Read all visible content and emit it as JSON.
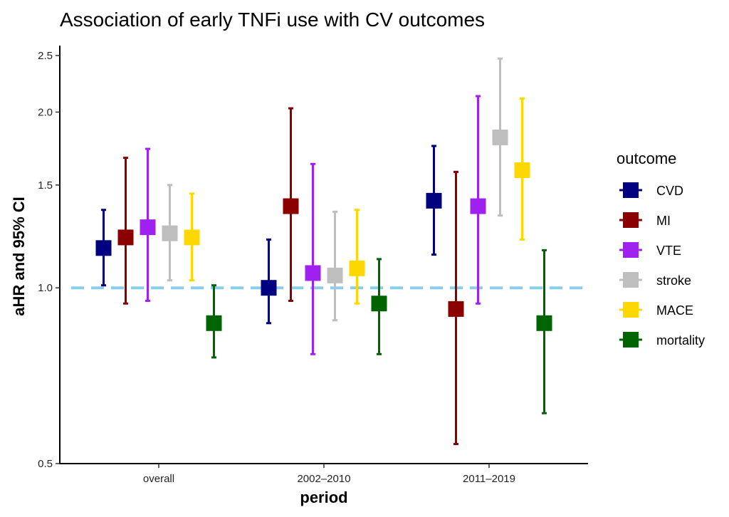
{
  "chart_data": {
    "type": "scatter",
    "subtype": "point-range (forest plot, dodged)",
    "title": "Association of early TNFi use with CV outcomes",
    "xlabel": "period",
    "ylabel": "aHR and 95% CI",
    "y_scale": "log",
    "ylim": [
      0.5,
      2.6
    ],
    "yticks": [
      0.5,
      1.0,
      1.5,
      2.0,
      2.5
    ],
    "ytick_labels": [
      "0.5",
      "1.0",
      "1.5",
      "2.0",
      "2.5"
    ],
    "categories": [
      "overall",
      "2002–2010",
      "2011–2019"
    ],
    "reference_line": {
      "y": 1.0,
      "style": "dashed",
      "color": "#87ceeb"
    },
    "grid": false,
    "legend": {
      "title": "outcome",
      "position": "right"
    },
    "series": [
      {
        "name": "CVD",
        "color": "#000080",
        "values": [
          1.17,
          1.0,
          1.41
        ],
        "lower": [
          1.01,
          0.87,
          1.14
        ],
        "upper": [
          1.36,
          1.21,
          1.75
        ]
      },
      {
        "name": "MI",
        "color": "#8b0000",
        "values": [
          1.22,
          1.38,
          0.92
        ],
        "lower": [
          0.94,
          0.95,
          0.54
        ],
        "upper": [
          1.67,
          2.03,
          1.58
        ]
      },
      {
        "name": "VTE",
        "color": "#a020f0",
        "values": [
          1.27,
          1.06,
          1.38
        ],
        "lower": [
          0.95,
          0.77,
          0.94
        ],
        "upper": [
          1.73,
          1.63,
          2.13
        ]
      },
      {
        "name": "stroke",
        "color": "#bebebe",
        "values": [
          1.24,
          1.05,
          1.81
        ],
        "lower": [
          1.03,
          0.88,
          1.33
        ],
        "upper": [
          1.5,
          1.35,
          2.47
        ]
      },
      {
        "name": "MACE",
        "color": "#ffd700",
        "values": [
          1.22,
          1.08,
          1.59
        ],
        "lower": [
          1.03,
          0.94,
          1.21
        ],
        "upper": [
          1.45,
          1.36,
          2.11
        ]
      },
      {
        "name": "mortality",
        "color": "#006400",
        "values": [
          0.87,
          0.94,
          0.87
        ],
        "lower": [
          0.76,
          0.77,
          0.61
        ],
        "upper": [
          1.01,
          1.12,
          1.16
        ]
      }
    ]
  }
}
